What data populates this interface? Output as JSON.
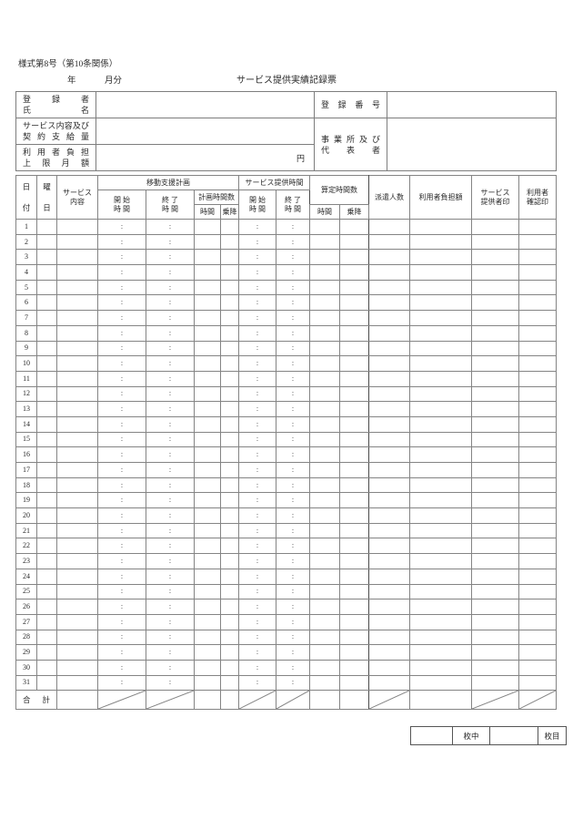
{
  "page": {
    "form_number": "様式第8号（第10条関係）",
    "year_label": "年",
    "month_label": "月分",
    "title": "サービス提供実績記録票"
  },
  "info_box": {
    "registrant_name_label": "登 録 者\n氏 名",
    "registration_number_label": "登 録 番 号",
    "service_content_label": "サービス内容及び\n契 約 支 給 量",
    "office_representative_label": "事 業 所 及 び\n代 表 者",
    "user_burden_label": "利 用 者 負 担\n上 限 月 額",
    "yen_suffix": "円"
  },
  "record_table": {
    "headers": {
      "date": "日\n付",
      "weekday": "曜\n日",
      "service_content": "サービス\n内容",
      "mobility_plan_group": "移動支援計画",
      "plan_start": "開 始\n時 間",
      "plan_end": "終 了\n時 間",
      "planned_hours": "計画時間数",
      "hours": "時間",
      "boarding": "乗降",
      "service_time_group": "サービス提供時間",
      "service_start": "開 始\n時 間",
      "service_end": "終 了\n時 間",
      "calculated_hours": "算定時間数",
      "dispatch_count": "派遣人数",
      "user_charge": "利用者負担額",
      "provider_seal": "サービス\n提供者印",
      "user_seal": "利用者\n確認印"
    },
    "time_separator": ":",
    "days": [
      1,
      2,
      3,
      4,
      5,
      6,
      7,
      8,
      9,
      10,
      11,
      12,
      13,
      14,
      15,
      16,
      17,
      18,
      19,
      20,
      21,
      22,
      23,
      24,
      25,
      26,
      27,
      28,
      29,
      30,
      31
    ],
    "total_label": "合 計"
  },
  "footer": {
    "sheets_total_label": "枚中",
    "sheet_number_label": "枚目"
  }
}
